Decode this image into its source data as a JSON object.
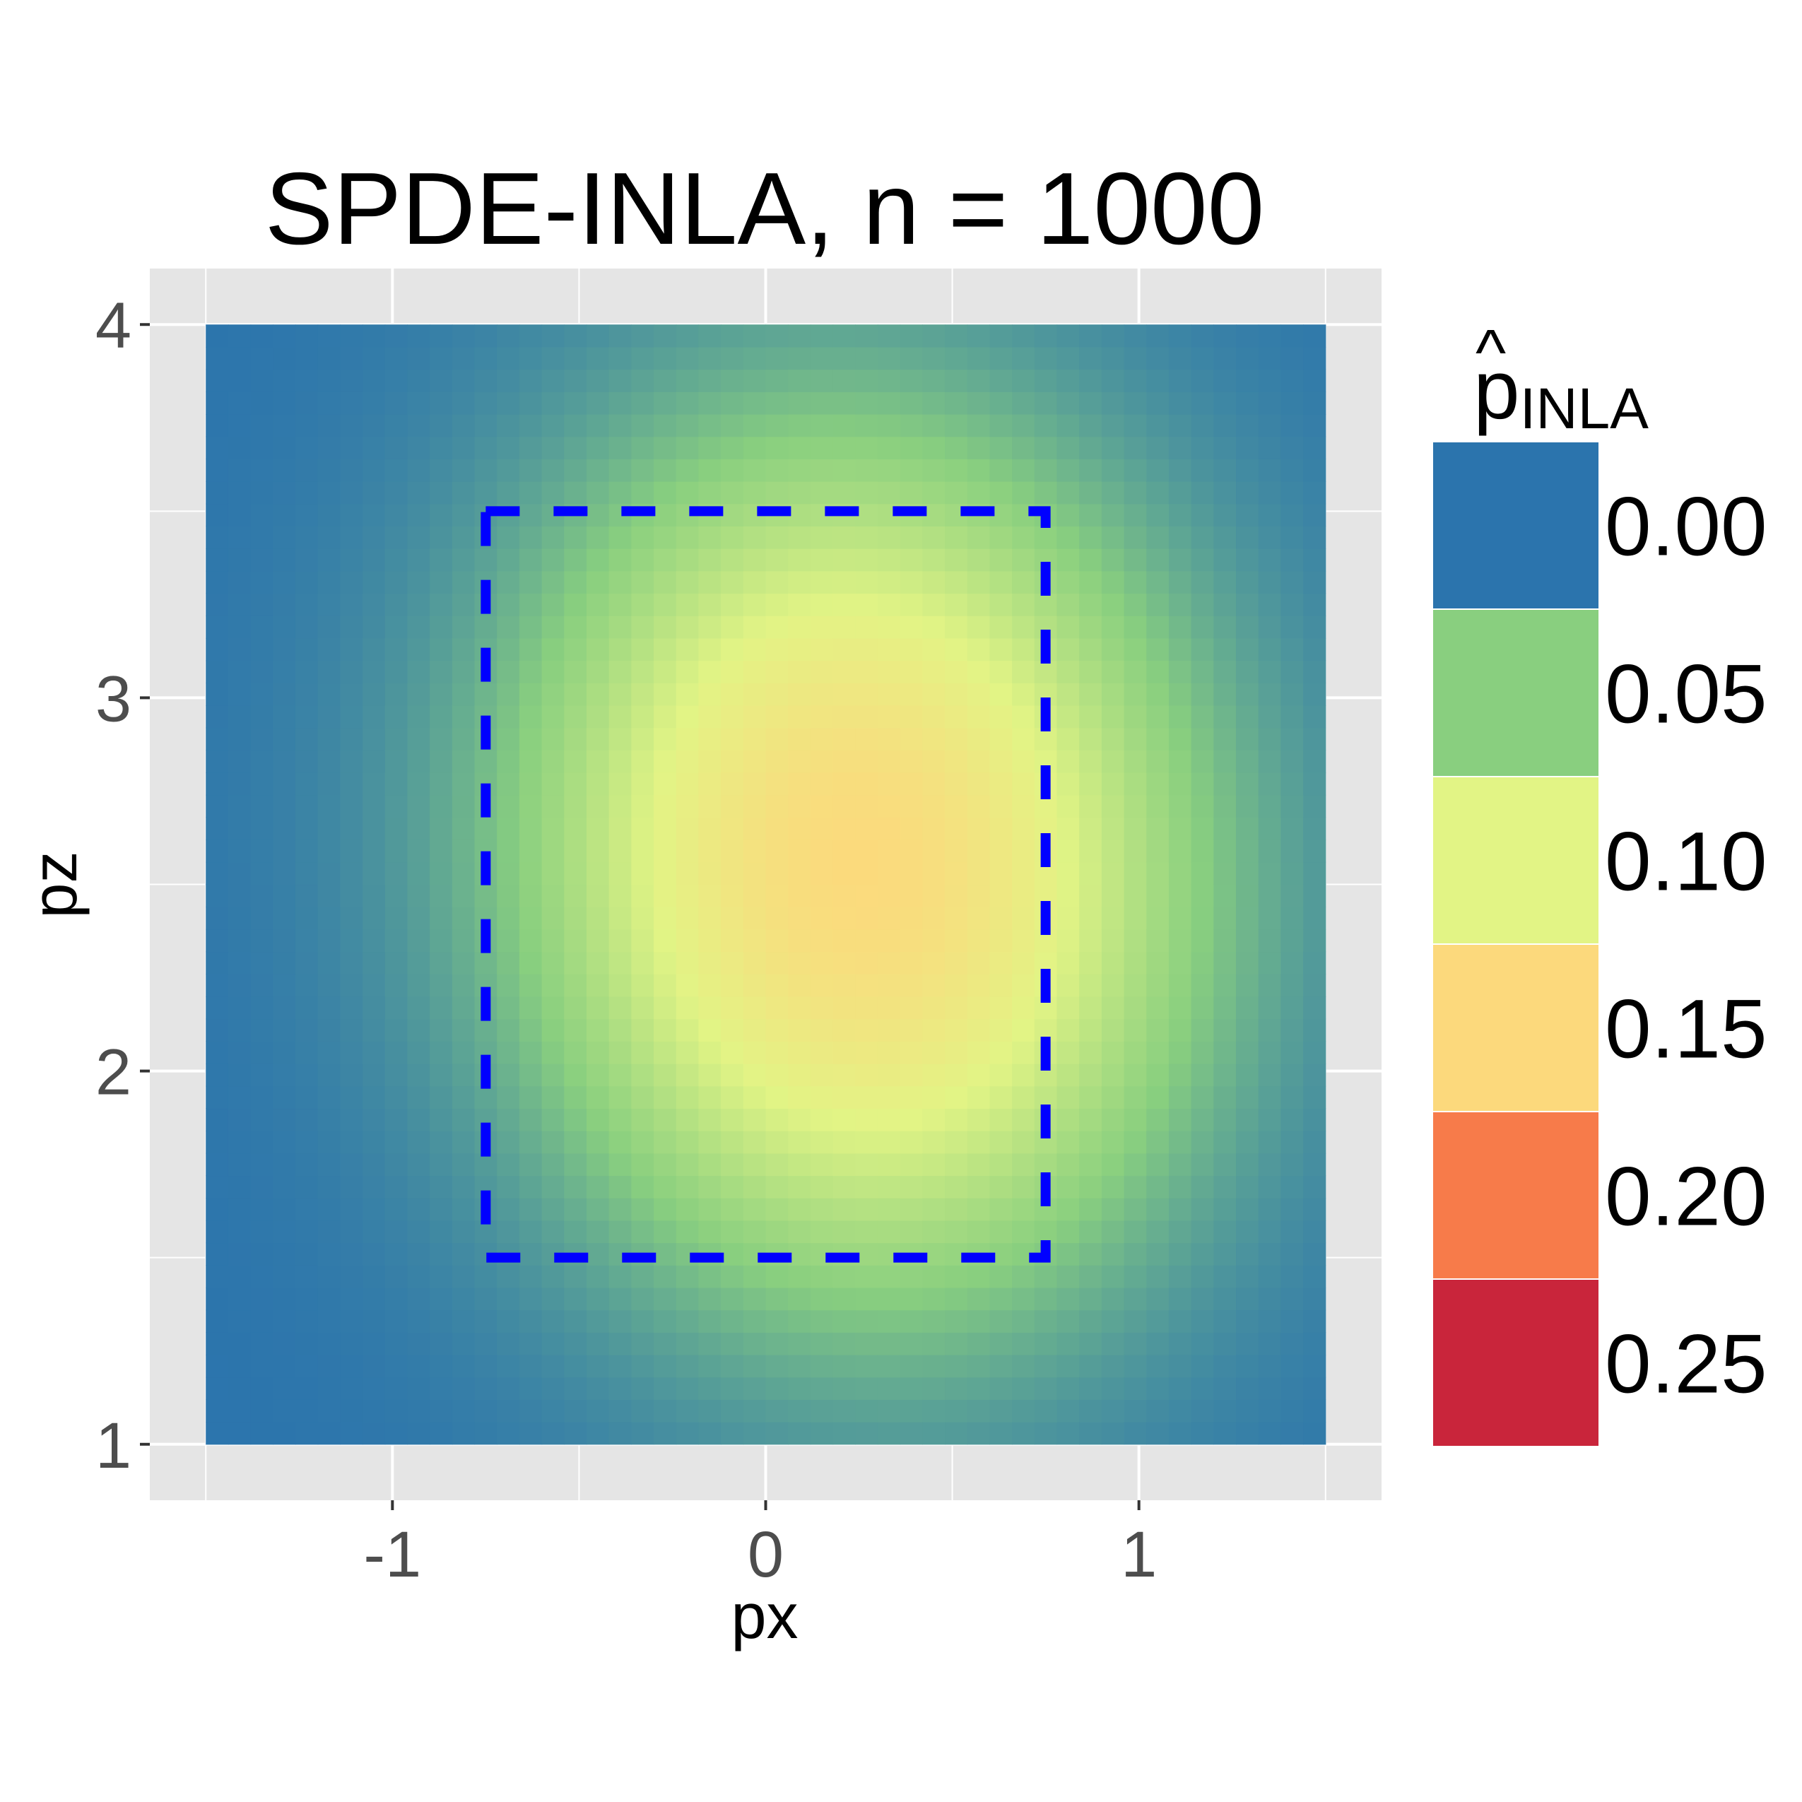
{
  "chart_data": {
    "type": "heatmap",
    "title": "SPDE-INLA, n = 1000",
    "xlabel": "px",
    "ylabel": "pz",
    "xlim": [
      -1.65,
      1.65
    ],
    "ylim": [
      0.85,
      4.15
    ],
    "x_ticks": [
      -1,
      0,
      1
    ],
    "x_tick_labels": [
      "-1",
      "0",
      "1"
    ],
    "y_ticks": [
      1,
      2,
      3,
      4
    ],
    "y_tick_labels": [
      "1",
      "2",
      "3",
      "4"
    ],
    "grid": true,
    "field": {
      "x_range": [
        -1.5,
        1.5
      ],
      "y_range": [
        1.0,
        4.0
      ],
      "nx": 50,
      "ny": 50,
      "peak": {
        "x": 0.25,
        "y": 2.55,
        "value": 0.148
      },
      "minimum_value": 0.0
    },
    "region": {
      "x": [
        -0.75,
        0.75
      ],
      "y": [
        1.5,
        3.5
      ],
      "style": "dashed",
      "color": "#0000ff"
    },
    "legend": {
      "title_main": "p",
      "title_hat": "^",
      "title_sub": "INLA",
      "placement": "right",
      "breaks": [
        {
          "label": "0.00",
          "color": "#2b74ad"
        },
        {
          "label": "0.05",
          "color": "#89cf7f"
        },
        {
          "label": "0.10",
          "color": "#e2f485"
        },
        {
          "label": "0.15",
          "color": "#fcd97c"
        },
        {
          "label": "0.20",
          "color": "#f77b4a"
        },
        {
          "label": "0.25",
          "color": "#c9253b"
        }
      ]
    },
    "colors": {
      "panel_background": "#e5e5e5",
      "grid": "#ffffff"
    }
  }
}
